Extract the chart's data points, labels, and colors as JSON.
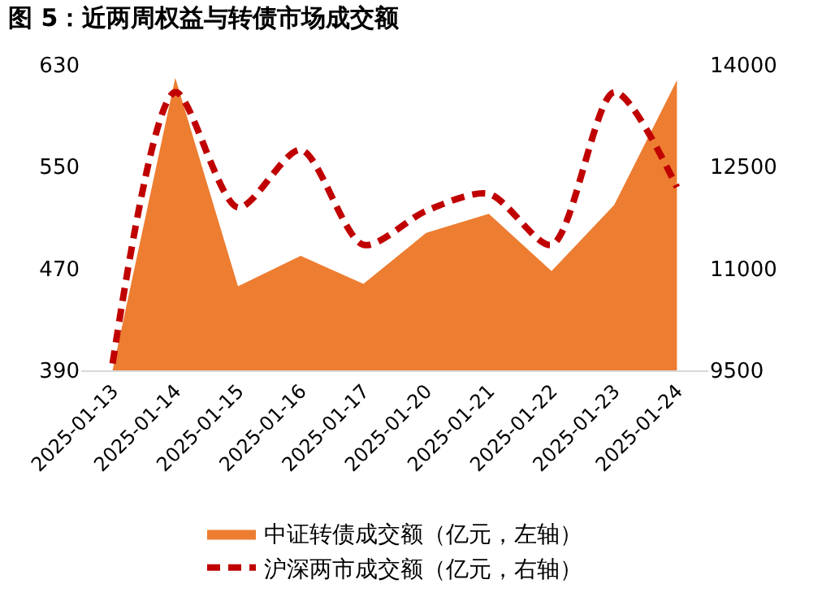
{
  "chart_data": {
    "type": "area",
    "title": "图 5：近两周权益与转债市场成交额",
    "categories": [
      "2025-01-13",
      "2025-01-14",
      "2025-01-15",
      "2025-01-16",
      "2025-01-17",
      "2025-01-20",
      "2025-01-21",
      "2025-01-22",
      "2025-01-23",
      "2025-01-24"
    ],
    "series": [
      {
        "name": "中证转债成交额（亿元，左轴）",
        "color": "#ed7d31",
        "values": [
          390,
          620,
          456,
          480,
          458,
          498,
          513,
          468,
          520,
          618
        ]
      },
      {
        "name": "沪深两市成交额（亿元，右轴）",
        "color": "#c00000",
        "type": "line",
        "axis": "y2",
        "line_style": "dashed",
        "values": [
          9600,
          13600,
          11900,
          12750,
          11350,
          11850,
          12100,
          11350,
          13600,
          12200
        ]
      }
    ],
    "ylim": [
      390,
      630
    ],
    "yticks": [
      390,
      470,
      550,
      630
    ],
    "y2lim": [
      9500,
      14000
    ],
    "y2ticks": [
      9500,
      11000,
      12500,
      14000
    ],
    "legend": "bottom"
  }
}
